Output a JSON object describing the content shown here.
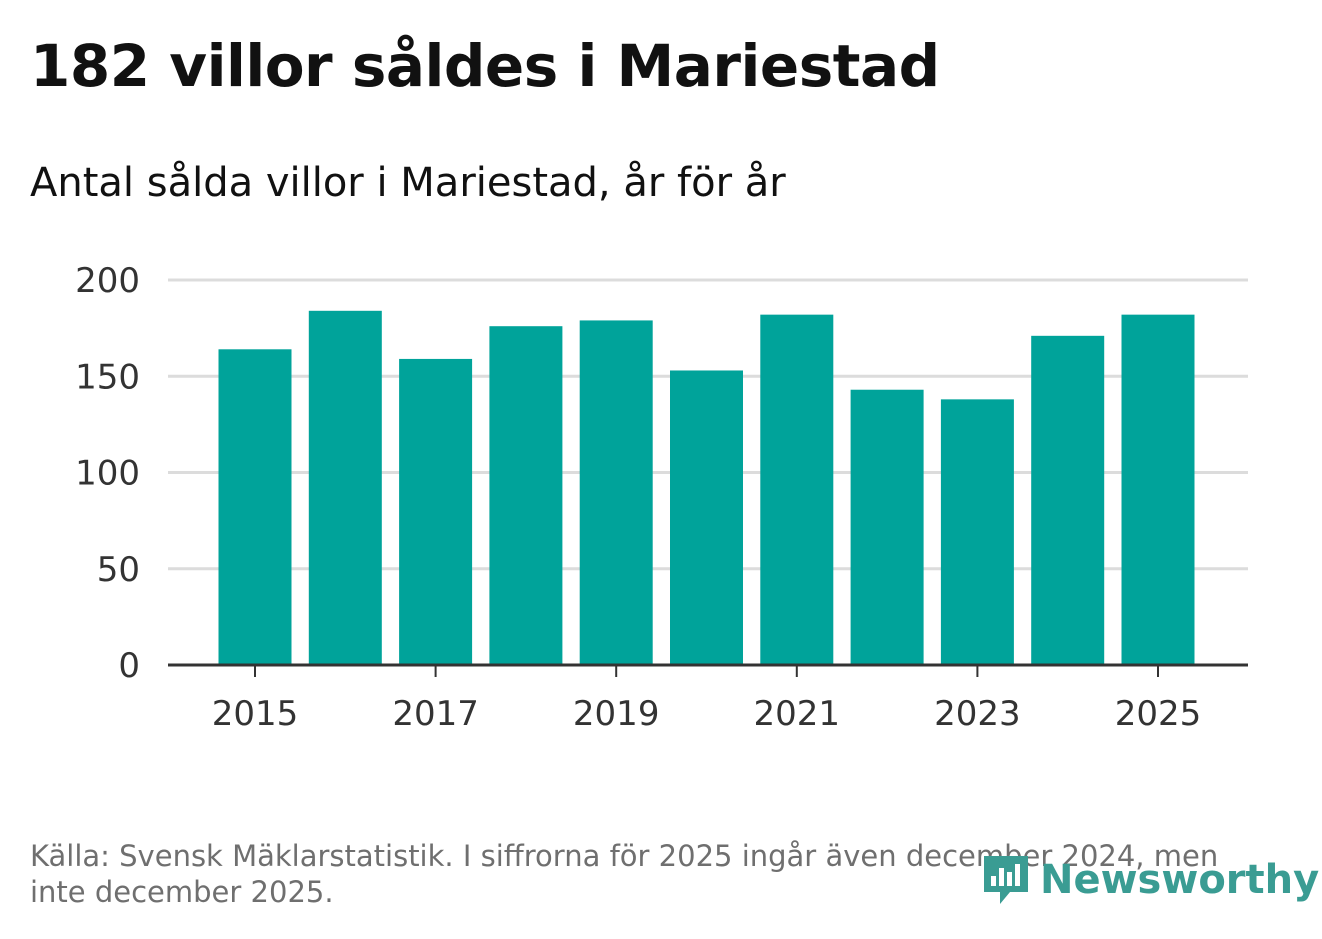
{
  "header": {
    "title": "182 villor såldes i Mariestad",
    "subtitle": "Antal sålda villor i Mariestad, år för år"
  },
  "footer": {
    "source": "Källa: Svensk Mäklarstatistik. I siffrorna för 2025 ingår även december 2024, men inte december 2025."
  },
  "logo": {
    "text": "Newsworthy",
    "icon": "bar-chart-speech-bubble-icon"
  },
  "colors": {
    "bar": "#00a39a",
    "grid": "#dcdcdc",
    "axis": "#333333",
    "tick_text": "#333333",
    "logo": "#3a9c93"
  },
  "chart_data": {
    "type": "bar",
    "title": "182 villor såldes i Mariestad",
    "subtitle": "Antal sålda villor i Mariestad, år för år",
    "xlabel": "",
    "ylabel": "",
    "categories": [
      "2015",
      "2016",
      "2017",
      "2018",
      "2019",
      "2020",
      "2021",
      "2022",
      "2023",
      "2024",
      "2025"
    ],
    "values": [
      164,
      184,
      159,
      176,
      179,
      153,
      182,
      143,
      138,
      171,
      182
    ],
    "x_tick_labels": [
      "2015",
      "2017",
      "2019",
      "2021",
      "2023",
      "2025"
    ],
    "y_ticks": [
      0,
      50,
      100,
      150,
      200
    ],
    "ylim": [
      0,
      200
    ],
    "grid": true,
    "legend": "none"
  }
}
